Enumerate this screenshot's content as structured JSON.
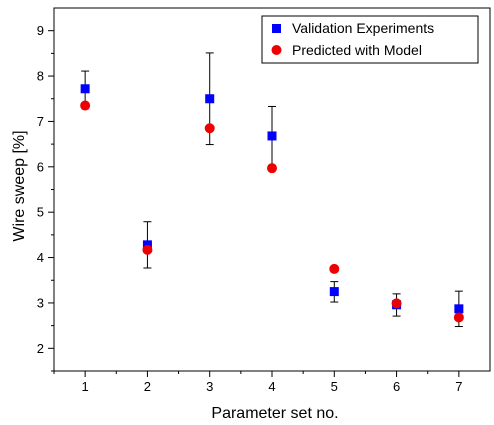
{
  "chart_data": {
    "type": "scatter",
    "title": "",
    "xlabel": "Parameter set no.",
    "ylabel": "Wire sweep [%]",
    "x": [
      1,
      2,
      3,
      4,
      5,
      6,
      7
    ],
    "xlim": [
      0.5,
      7.5
    ],
    "ylim": [
      1.5,
      9.5
    ],
    "xticks": [
      "1",
      "2",
      "3",
      "4",
      "5",
      "6",
      "7"
    ],
    "yticks": [
      "2",
      "3",
      "4",
      "5",
      "6",
      "7",
      "8",
      "9"
    ],
    "grid": false,
    "legend_position": "top-right",
    "series": [
      {
        "name": "Validation Experiments",
        "marker": "square",
        "color": "#0000ff",
        "values": [
          7.72,
          4.28,
          7.5,
          6.68,
          3.25,
          2.96,
          2.87
        ],
        "error_upper": [
          8.11,
          4.79,
          8.51,
          7.33,
          3.47,
          3.2,
          3.26
        ],
        "error_lower": [
          7.35,
          3.77,
          6.49,
          6.03,
          3.02,
          2.71,
          2.48
        ]
      },
      {
        "name": "Predicted with Model",
        "marker": "circle",
        "color": "#ee0000",
        "values": [
          7.35,
          4.17,
          6.85,
          5.97,
          3.75,
          2.99,
          2.68
        ]
      }
    ]
  }
}
